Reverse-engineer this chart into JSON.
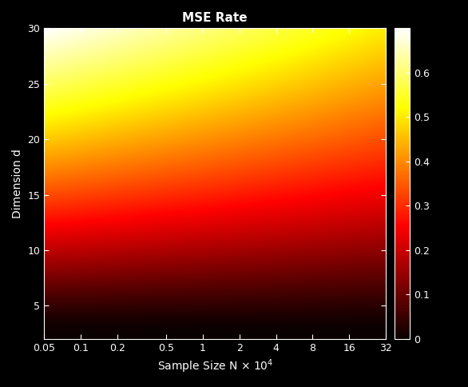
{
  "title": "MSE Rate",
  "xlabel": "Sample Size N \\times 10^{4}",
  "ylabel": "Dimension d",
  "x_ticks": [
    0.05,
    0.1,
    0.2,
    0.5,
    1,
    2,
    4,
    8,
    16,
    32
  ],
  "x_tick_labels": [
    "0.05",
    "0.1",
    "0.2",
    "0.5",
    "1",
    "2",
    "4",
    "8",
    "16",
    "32"
  ],
  "y_min": 2,
  "y_max": 30,
  "y_ticks": [
    5,
    10,
    15,
    20,
    25,
    30
  ],
  "vmin": 0,
  "vmax": 0.7,
  "colorbar_ticks": [
    0,
    0.1,
    0.2,
    0.3,
    0.4,
    0.5,
    0.6
  ],
  "colormap": "hot",
  "figsize": [
    5.86,
    4.84
  ],
  "dpi": 100,
  "background_color": "#000000",
  "log_N_min": -1.30103,
  "log_N_max": 1.50515
}
